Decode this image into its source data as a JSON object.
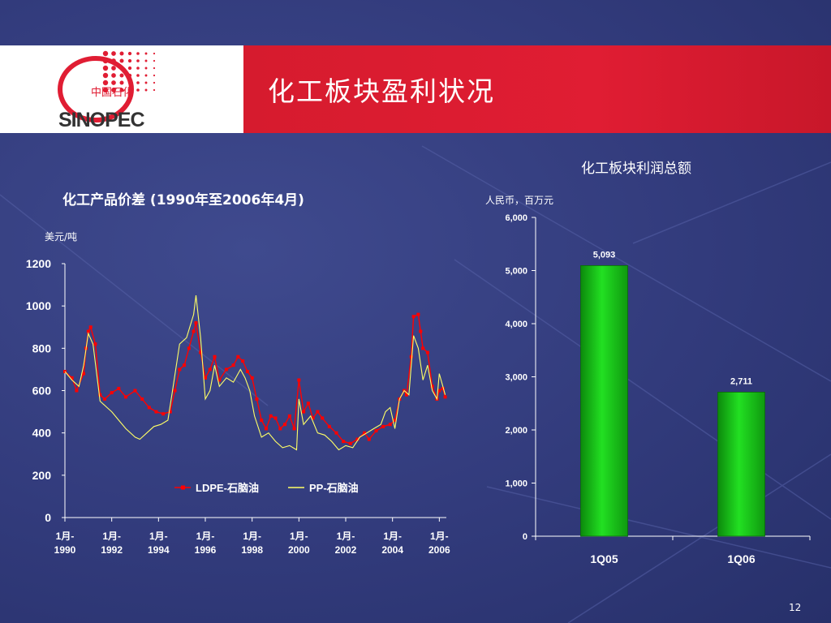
{
  "slide": {
    "title": "化工板块盈利状况",
    "page_number": "12",
    "logo_text": "SINOPEC",
    "logo_cn": "中国石化"
  },
  "colors": {
    "header_red": "#e01d33",
    "background": "#323b7c",
    "ldpe_series": "#ff0000",
    "pp_series": "#ffff66",
    "bar_green": "#22e022"
  },
  "chart_data": [
    {
      "type": "line",
      "title": "化工产品价差 (1990年至2006年4月)",
      "ylabel": "美元/吨",
      "ylim": [
        0,
        1200
      ],
      "yticks": [
        "0",
        "200",
        "400",
        "600",
        "800",
        "1000",
        "1200"
      ],
      "xlim": [
        1990.0,
        2006.3
      ],
      "xticks": [
        {
          "value": 1990,
          "label": [
            "1月-",
            "1990"
          ]
        },
        {
          "value": 1992,
          "label": [
            "1月-",
            "1992"
          ]
        },
        {
          "value": 1994,
          "label": [
            "1月-",
            "1994"
          ]
        },
        {
          "value": 1996,
          "label": [
            "1月-",
            "1996"
          ]
        },
        {
          "value": 1998,
          "label": [
            "1月-",
            "1998"
          ]
        },
        {
          "value": 2000,
          "label": [
            "1月-",
            "2000"
          ]
        },
        {
          "value": 2002,
          "label": [
            "1月-",
            "2002"
          ]
        },
        {
          "value": 2004,
          "label": [
            "1月-",
            "2004"
          ]
        },
        {
          "value": 2006,
          "label": [
            "1月-",
            "2006"
          ]
        }
      ],
      "legend_placement": "bottom",
      "series": [
        {
          "name": "LDPE-石脑油",
          "color": "#ff0000",
          "marker": "square",
          "points": [
            [
              1990.0,
              690
            ],
            [
              1990.3,
              660
            ],
            [
              1990.5,
              600
            ],
            [
              1990.8,
              680
            ],
            [
              1990.9,
              800
            ],
            [
              1991.0,
              880
            ],
            [
              1991.1,
              900
            ],
            [
              1991.3,
              820
            ],
            [
              1991.5,
              580
            ],
            [
              1991.7,
              560
            ],
            [
              1992.0,
              590
            ],
            [
              1992.3,
              610
            ],
            [
              1992.6,
              570
            ],
            [
              1993.0,
              600
            ],
            [
              1993.3,
              560
            ],
            [
              1993.6,
              520
            ],
            [
              1993.9,
              500
            ],
            [
              1994.2,
              490
            ],
            [
              1994.5,
              500
            ],
            [
              1994.7,
              600
            ],
            [
              1994.9,
              700
            ],
            [
              1995.1,
              720
            ],
            [
              1995.3,
              800
            ],
            [
              1995.5,
              880
            ],
            [
              1995.6,
              920
            ],
            [
              1995.8,
              780
            ],
            [
              1996.0,
              660
            ],
            [
              1996.2,
              700
            ],
            [
              1996.4,
              760
            ],
            [
              1996.6,
              650
            ],
            [
              1996.9,
              700
            ],
            [
              1997.2,
              720
            ],
            [
              1997.4,
              760
            ],
            [
              1997.6,
              740
            ],
            [
              1997.8,
              690
            ],
            [
              1998.0,
              660
            ],
            [
              1998.2,
              560
            ],
            [
              1998.4,
              460
            ],
            [
              1998.6,
              420
            ],
            [
              1998.8,
              480
            ],
            [
              1999.0,
              470
            ],
            [
              1999.2,
              420
            ],
            [
              1999.4,
              440
            ],
            [
              1999.6,
              480
            ],
            [
              1999.8,
              420
            ],
            [
              2000.0,
              650
            ],
            [
              2000.2,
              500
            ],
            [
              2000.4,
              540
            ],
            [
              2000.6,
              470
            ],
            [
              2000.8,
              500
            ],
            [
              2001.0,
              470
            ],
            [
              2001.3,
              430
            ],
            [
              2001.6,
              400
            ],
            [
              2001.9,
              360
            ],
            [
              2002.2,
              350
            ],
            [
              2002.5,
              370
            ],
            [
              2002.8,
              400
            ],
            [
              2003.0,
              370
            ],
            [
              2003.3,
              410
            ],
            [
              2003.6,
              430
            ],
            [
              2003.9,
              440
            ],
            [
              2004.1,
              460
            ],
            [
              2004.3,
              560
            ],
            [
              2004.5,
              600
            ],
            [
              2004.6,
              580
            ],
            [
              2004.8,
              760
            ],
            [
              2004.9,
              950
            ],
            [
              2005.1,
              960
            ],
            [
              2005.2,
              880
            ],
            [
              2005.3,
              800
            ],
            [
              2005.5,
              780
            ],
            [
              2005.7,
              620
            ],
            [
              2005.9,
              560
            ],
            [
              2006.0,
              600
            ],
            [
              2006.15,
              610
            ],
            [
              2006.25,
              570
            ]
          ]
        },
        {
          "name": "PP-石脑油",
          "color": "#ffff66",
          "marker": "none",
          "points": [
            [
              1990.0,
              690
            ],
            [
              1990.3,
              650
            ],
            [
              1990.6,
              620
            ],
            [
              1990.8,
              720
            ],
            [
              1991.0,
              870
            ],
            [
              1991.2,
              820
            ],
            [
              1991.5,
              550
            ],
            [
              1991.8,
              520
            ],
            [
              1992.0,
              500
            ],
            [
              1992.3,
              460
            ],
            [
              1992.6,
              420
            ],
            [
              1993.0,
              380
            ],
            [
              1993.2,
              370
            ],
            [
              1993.5,
              400
            ],
            [
              1993.8,
              430
            ],
            [
              1994.1,
              440
            ],
            [
              1994.4,
              460
            ],
            [
              1994.6,
              600
            ],
            [
              1994.9,
              820
            ],
            [
              1995.2,
              850
            ],
            [
              1995.5,
              960
            ],
            [
              1995.6,
              1050
            ],
            [
              1995.8,
              850
            ],
            [
              1996.0,
              560
            ],
            [
              1996.2,
              600
            ],
            [
              1996.4,
              720
            ],
            [
              1996.6,
              620
            ],
            [
              1996.9,
              660
            ],
            [
              1997.2,
              640
            ],
            [
              1997.5,
              700
            ],
            [
              1997.7,
              660
            ],
            [
              1997.9,
              600
            ],
            [
              1998.1,
              480
            ],
            [
              1998.4,
              380
            ],
            [
              1998.7,
              400
            ],
            [
              1999.0,
              360
            ],
            [
              1999.3,
              330
            ],
            [
              1999.6,
              340
            ],
            [
              1999.9,
              320
            ],
            [
              2000.0,
              560
            ],
            [
              2000.2,
              440
            ],
            [
              2000.5,
              480
            ],
            [
              2000.8,
              400
            ],
            [
              2001.1,
              390
            ],
            [
              2001.4,
              360
            ],
            [
              2001.7,
              320
            ],
            [
              2002.0,
              340
            ],
            [
              2002.3,
              330
            ],
            [
              2002.6,
              380
            ],
            [
              2002.9,
              400
            ],
            [
              2003.2,
              420
            ],
            [
              2003.5,
              440
            ],
            [
              2003.7,
              500
            ],
            [
              2003.9,
              520
            ],
            [
              2004.1,
              420
            ],
            [
              2004.3,
              560
            ],
            [
              2004.5,
              600
            ],
            [
              2004.7,
              580
            ],
            [
              2004.9,
              860
            ],
            [
              2005.1,
              800
            ],
            [
              2005.3,
              650
            ],
            [
              2005.5,
              720
            ],
            [
              2005.7,
              600
            ],
            [
              2005.9,
              560
            ],
            [
              2006.0,
              680
            ],
            [
              2006.15,
              620
            ],
            [
              2006.25,
              580
            ]
          ]
        }
      ]
    },
    {
      "type": "bar",
      "title": "化工板块利润总额",
      "ylabel": "人民币，百万元",
      "ylim": [
        0,
        6000
      ],
      "yticks": [
        "0",
        "1,000",
        "2,000",
        "3,000",
        "4,000",
        "5,000",
        "6,000"
      ],
      "categories": [
        "1Q05",
        "1Q06"
      ],
      "values": [
        5093,
        2711
      ],
      "data_labels": [
        "5,093",
        "2,711"
      ],
      "color": "#22e022"
    }
  ]
}
